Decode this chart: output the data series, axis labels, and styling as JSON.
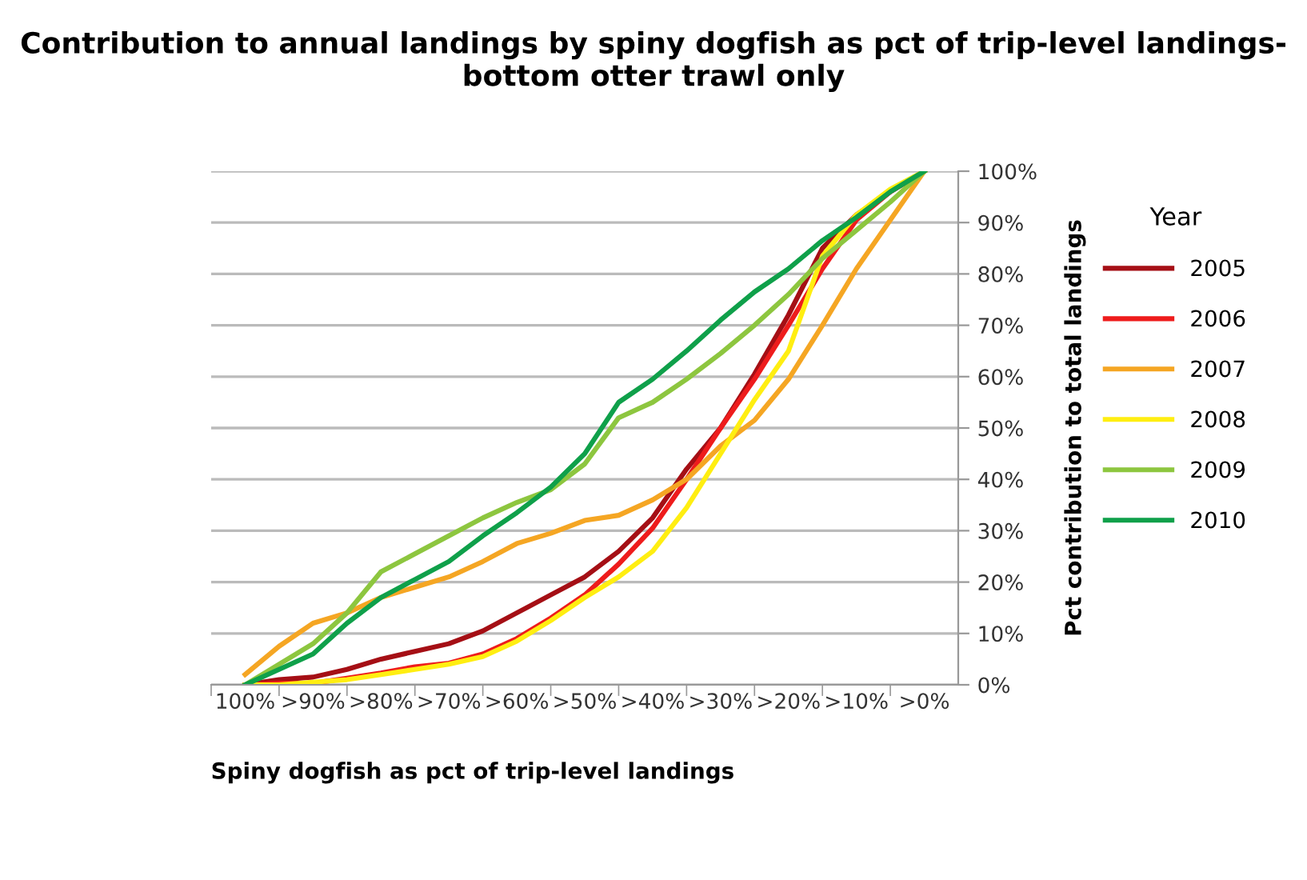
{
  "chart_data": {
    "type": "line",
    "title": "Contribution to annual landings by spiny dogfish as pct of trip-level landings- bottom otter trawl only",
    "xlabel": "Spiny dogfish as pct of trip-level landings",
    "ylabel": "Pct contribution to total landings",
    "legend_title": "Year",
    "categories": [
      "100%",
      null,
      ">90%",
      null,
      ">80%",
      null,
      ">70%",
      null,
      ">60%",
      null,
      ">50%",
      null,
      ">40%",
      null,
      ">30%",
      null,
      ">20%",
      null,
      ">10%",
      null,
      ">0%"
    ],
    "series": [
      {
        "name": "2005",
        "color": "#a50f15",
        "values": [
          0,
          1,
          1.5,
          3,
          5,
          6.5,
          8,
          10.5,
          14,
          17.5,
          21,
          26,
          32.5,
          42,
          50,
          60.5,
          72,
          85,
          91.5,
          96,
          100
        ]
      },
      {
        "name": "2006",
        "color": "#ee1c1c",
        "values": [
          0,
          0.3,
          0.3,
          1.3,
          2.3,
          3.5,
          4.2,
          6,
          9,
          13,
          17.5,
          23.5,
          30.5,
          40,
          50,
          59.5,
          70,
          81,
          90.5,
          96,
          100
        ]
      },
      {
        "name": "2007",
        "color": "#f5a623",
        "values": [
          2,
          7.5,
          12,
          14,
          17,
          19,
          21,
          24,
          27.5,
          29.5,
          32,
          33,
          36,
          40,
          46.5,
          51.5,
          59.5,
          70,
          81,
          90.5,
          100
        ]
      },
      {
        "name": "2008",
        "color": "#ffee11",
        "values": [
          0,
          0,
          0.5,
          1,
          2,
          3,
          4,
          5.5,
          8.5,
          12.5,
          17,
          21,
          26,
          34.5,
          45,
          55.5,
          65,
          83.5,
          91.5,
          96.5,
          100
        ]
      },
      {
        "name": "2009",
        "color": "#8dc63f",
        "values": [
          0,
          4,
          8,
          14,
          22,
          25.5,
          29,
          32.5,
          35.5,
          38,
          43,
          52,
          55,
          59.5,
          64.5,
          70,
          76,
          83,
          88.5,
          94,
          100
        ]
      },
      {
        "name": "2010",
        "color": "#0fa04a",
        "values": [
          0,
          3,
          6,
          12,
          17,
          20.5,
          24,
          29,
          33.5,
          38.5,
          45,
          55,
          59.5,
          65,
          71,
          76.5,
          81,
          86.5,
          91,
          96,
          100
        ]
      }
    ],
    "ylim": [
      0,
      100
    ],
    "yticks": [
      {
        "value": 0,
        "label": "0%"
      },
      {
        "value": 10,
        "label": "10%"
      },
      {
        "value": 20,
        "label": "20%"
      },
      {
        "value": 30,
        "label": "30%"
      },
      {
        "value": 40,
        "label": "40%"
      },
      {
        "value": 50,
        "label": "50%"
      },
      {
        "value": 60,
        "label": "60%"
      },
      {
        "value": 70,
        "label": "70%"
      },
      {
        "value": 80,
        "label": "80%"
      },
      {
        "value": 90,
        "label": "90%"
      },
      {
        "value": 100,
        "label": "100%"
      }
    ],
    "grid": "y",
    "legend": "right",
    "marker": "none",
    "line_style": "solid"
  }
}
